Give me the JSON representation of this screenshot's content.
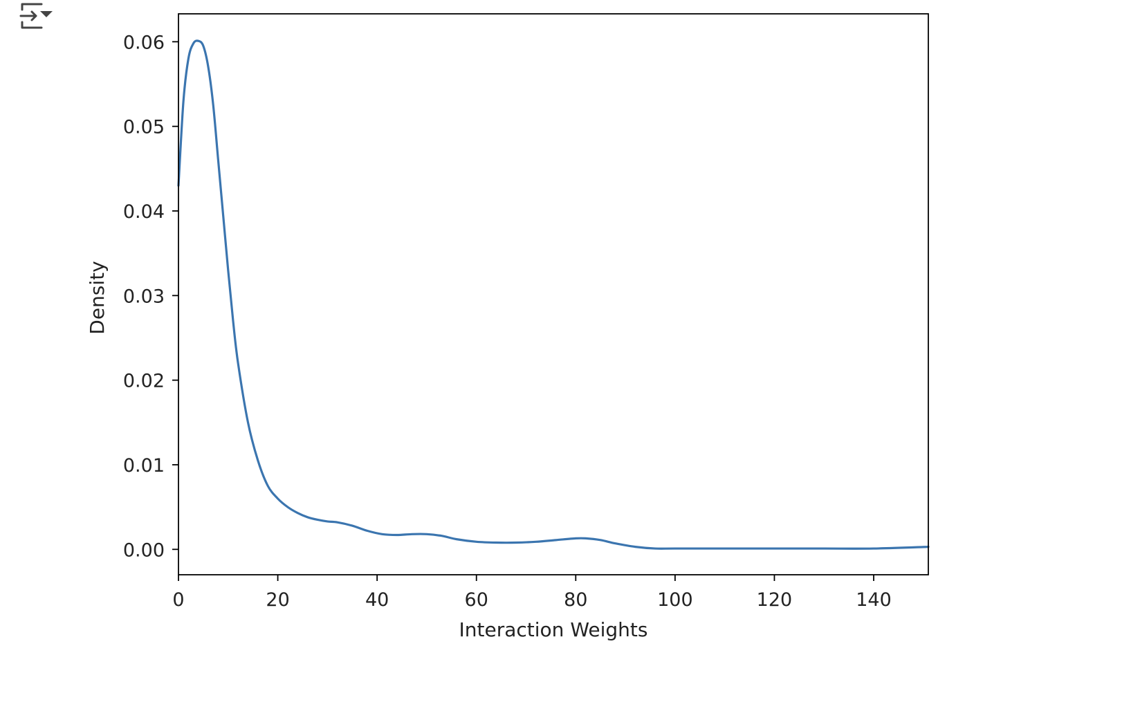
{
  "toolbar": {
    "output_icon": "output-collapse-icon"
  },
  "colors": {
    "line": "#3b75af",
    "axes": "#000000",
    "text": "#222222",
    "background": "#ffffff"
  },
  "chart_data": {
    "type": "line",
    "title": "",
    "xlabel": "Interaction Weights",
    "ylabel": "Density",
    "xlim": [
      0,
      151
    ],
    "ylim": [
      -0.003,
      0.0633
    ],
    "grid": false,
    "legend": "none",
    "x_ticks": [
      0,
      20,
      40,
      60,
      80,
      100,
      120,
      140
    ],
    "y_ticks": [
      0.0,
      0.01,
      0.02,
      0.03,
      0.04,
      0.05,
      0.06
    ],
    "x_tick_labels": [
      "0",
      "20",
      "40",
      "60",
      "80",
      "100",
      "120",
      "140"
    ],
    "y_tick_labels": [
      "0.00",
      "0.01",
      "0.02",
      "0.03",
      "0.04",
      "0.05",
      "0.06"
    ],
    "series": [
      {
        "color": "#3b75af",
        "x": [
          0,
          1,
          2,
          3,
          4,
          5,
          6,
          7,
          8,
          9,
          10,
          11,
          12,
          14,
          16,
          18,
          20,
          22,
          24,
          26,
          28,
          30,
          32,
          35,
          38,
          41,
          44,
          47,
          50,
          53,
          56,
          60,
          64,
          68,
          72,
          76,
          80,
          82,
          85,
          88,
          92,
          96,
          100,
          110,
          120,
          130,
          140,
          151
        ],
        "y": [
          0.043,
          0.053,
          0.058,
          0.0598,
          0.0601,
          0.0595,
          0.057,
          0.0525,
          0.046,
          0.0395,
          0.033,
          0.027,
          0.022,
          0.015,
          0.0105,
          0.0075,
          0.006,
          0.005,
          0.0043,
          0.0038,
          0.0035,
          0.0033,
          0.0032,
          0.0028,
          0.0022,
          0.0018,
          0.0017,
          0.0018,
          0.0018,
          0.0016,
          0.0012,
          0.0009,
          0.0008,
          0.0008,
          0.0009,
          0.0011,
          0.0013,
          0.0013,
          0.0011,
          0.0007,
          0.0003,
          0.0001,
          0.0001,
          0.0001,
          0.0001,
          0.0001,
          0.0001,
          0.0003
        ]
      }
    ]
  }
}
